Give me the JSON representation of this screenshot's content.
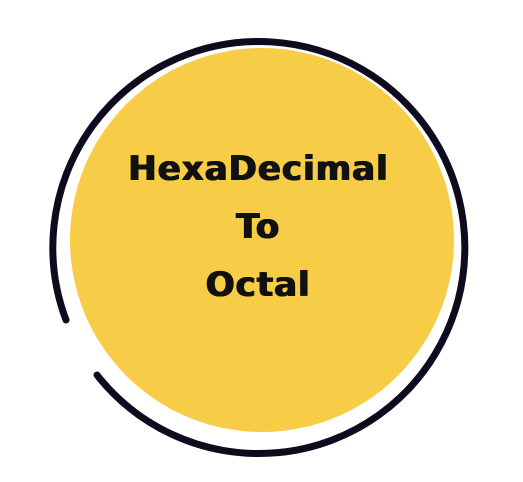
{
  "badge": {
    "fill_color": "#f7cd48",
    "ring_color": "#0e0b1f",
    "background_color": "#ffffff",
    "title_lines": [
      "HexaDecimal",
      "To",
      "Octal"
    ]
  }
}
